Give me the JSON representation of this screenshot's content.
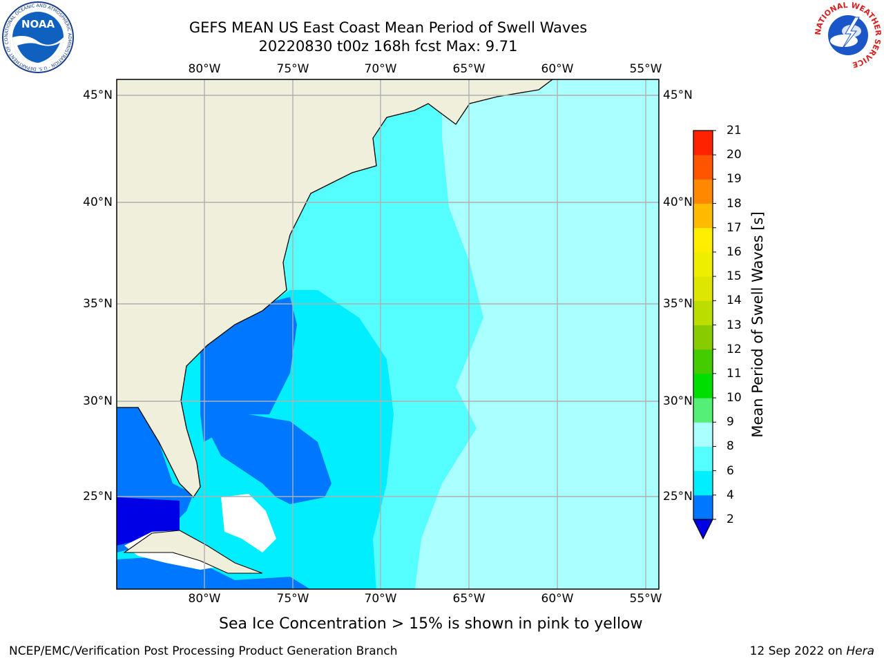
{
  "title": {
    "line1": "GEFS MEAN US East Coast Mean Period of Swell Waves",
    "line2": "20220830 t00z 168h fcst   Max: 9.71"
  },
  "map": {
    "lon_labels": [
      "80°W",
      "75°W",
      "70°W",
      "65°W",
      "60°W",
      "55°W"
    ],
    "lat_labels": [
      "45°N",
      "40°N",
      "35°N",
      "30°N",
      "25°N"
    ],
    "colors": {
      "land": "#efefdc",
      "grid": "#b0b0b0",
      "coast": "#000000"
    }
  },
  "colorbar": {
    "label": "Mean Period of Swell Waves [s]",
    "ticks": [
      "2",
      "4",
      "6",
      "8",
      "9",
      "10",
      "11",
      "12",
      "13",
      "14",
      "15",
      "16",
      "17",
      "18",
      "19",
      "20",
      "21"
    ],
    "colors": [
      "#0000e6",
      "#0077ff",
      "#00eeff",
      "#55ffff",
      "#aaffff",
      "#55ee77",
      "#00dd00",
      "#44cc00",
      "#88cc00",
      "#bbdd00",
      "#dde600",
      "#eeee00",
      "#ffee00",
      "#ffbb00",
      "#ff8800",
      "#ff5500",
      "#ff2200",
      "#ff0000"
    ]
  },
  "caption": "Sea Ice Concentration > 15% is shown in pink to yellow",
  "footer": {
    "left": "NCEP/EMC/Verification Post Processing Product Generation Branch",
    "right_date": "12 Sep 2022 on ",
    "right_host": "Hera"
  },
  "logos": {
    "noaa_text": "NOAA",
    "noaa_ring": "NATIONAL OCEANIC AND ATMOSPHERIC ADMINISTRATION · U.S. DEPARTMENT OF COMMERCE",
    "nws_ring": "NATIONAL WEATHER SERVICE"
  }
}
